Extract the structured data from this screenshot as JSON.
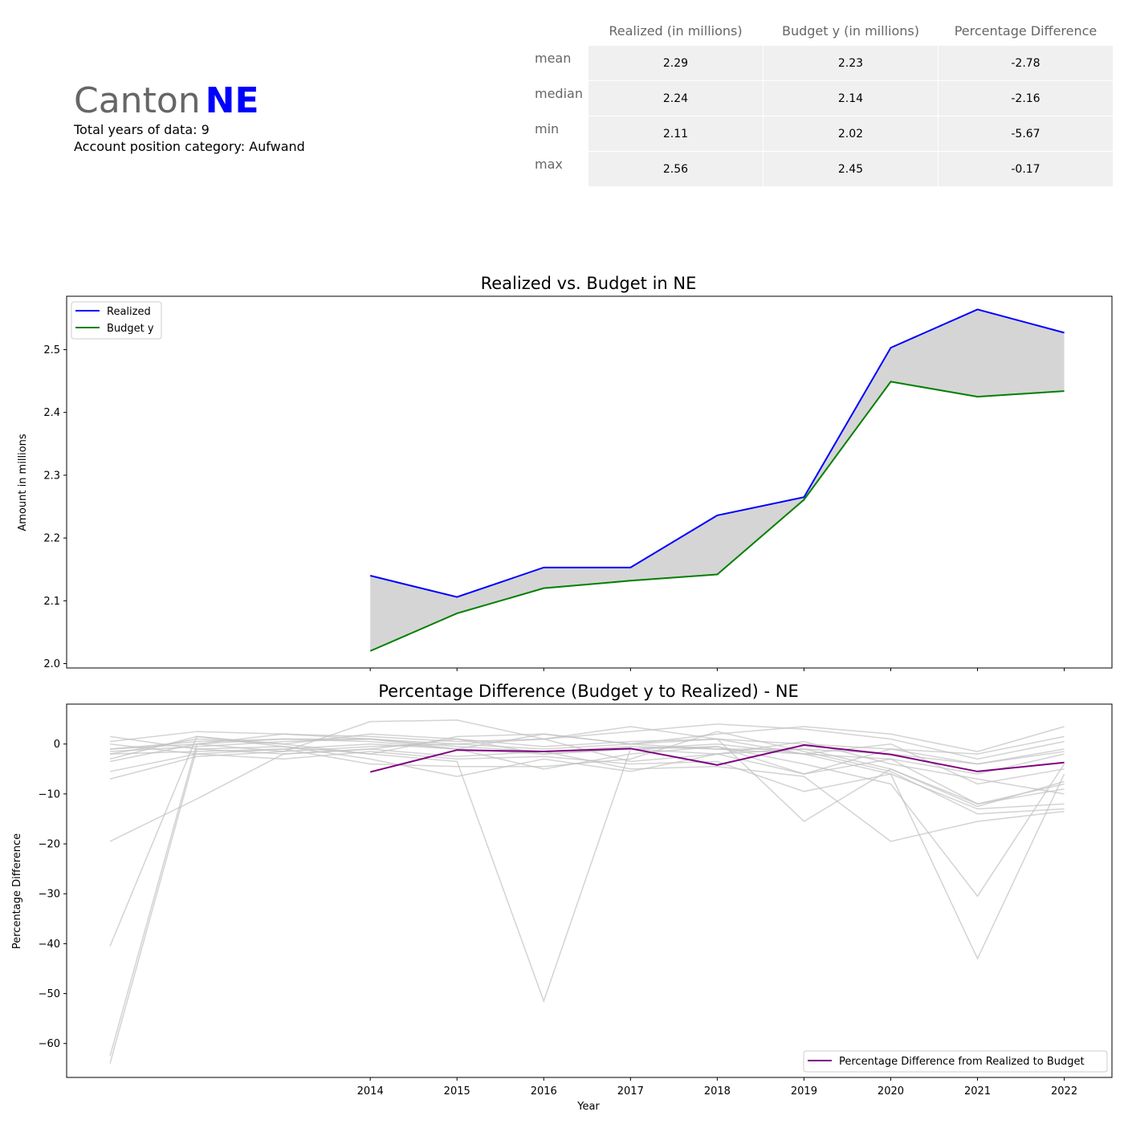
{
  "header": {
    "canton_word": "Canton",
    "canton_code": "NE",
    "years_line": "Total years of data: 9",
    "category_line": "Account position category: Aufwand"
  },
  "stats_table": {
    "columns": [
      "Realized (in millions)",
      "Budget y (in millions)",
      "Percentage Difference"
    ],
    "rows": [
      {
        "label": "mean",
        "values": [
          "2.29",
          "2.23",
          "-2.78"
        ]
      },
      {
        "label": "median",
        "values": [
          "2.24",
          "2.14",
          "-2.16"
        ]
      },
      {
        "label": "min",
        "values": [
          "2.11",
          "2.02",
          "-5.67"
        ]
      },
      {
        "label": "max",
        "values": [
          "2.56",
          "2.45",
          "-0.17"
        ]
      }
    ]
  },
  "chart_data": [
    {
      "type": "line",
      "title": "Realized vs. Budget in NE",
      "xlabel": "",
      "ylabel": "Amount in millions",
      "x": [
        2014,
        2015,
        2016,
        2017,
        2018,
        2019,
        2020,
        2021,
        2022
      ],
      "xlim": [
        2010.5,
        2022.55
      ],
      "ylim": [
        1.993,
        2.585
      ],
      "yticks": [
        2.0,
        2.1,
        2.2,
        2.3,
        2.4,
        2.5
      ],
      "legend_position": "top-left",
      "fill_between": true,
      "series": [
        {
          "name": "Realized",
          "color": "#0000ff",
          "values": [
            2.14,
            2.106,
            2.153,
            2.153,
            2.236,
            2.265,
            2.503,
            2.564,
            2.527
          ]
        },
        {
          "name": "Budget y",
          "color": "#008000",
          "values": [
            2.02,
            2.08,
            2.12,
            2.132,
            2.142,
            2.261,
            2.449,
            2.425,
            2.434
          ]
        }
      ]
    },
    {
      "type": "line",
      "title": "Percentage Difference (Budget y to Realized) - NE",
      "xlabel": "Year",
      "ylabel": "Percentage Difference",
      "x": [
        2014,
        2015,
        2016,
        2017,
        2018,
        2019,
        2020,
        2021,
        2022
      ],
      "xticks": [
        "2014",
        "2015",
        "2016",
        "2017",
        "2018",
        "2019",
        "2020",
        "2021",
        "2022"
      ],
      "xlim": [
        2010.5,
        2022.55
      ],
      "ylim": [
        -66.8,
        8.0
      ],
      "yticks": [
        0,
        -10,
        -20,
        -30,
        -40,
        -50,
        -60
      ],
      "legend_position": "bottom-right",
      "series": [
        {
          "name": "Percentage Difference from Realized to Budget",
          "color": "#800080",
          "values": [
            -5.6,
            -1.2,
            -1.5,
            -0.9,
            -4.2,
            -0.2,
            -2.1,
            -5.5,
            -3.7
          ]
        }
      ],
      "background_series_color": "#c0c0c0",
      "background_x": [
        2011,
        2012,
        2013,
        2014,
        2015,
        2016,
        2017,
        2018,
        2019,
        2020,
        2021,
        2022
      ],
      "background_series": [
        [
          1.5,
          -1.0,
          -2.0,
          -1.0,
          1.0,
          -0.5,
          0.5,
          1.0,
          0.0,
          -1.0,
          -4.0,
          -1.0
        ],
        [
          -1.0,
          0.5,
          1.0,
          1.0,
          0.0,
          -1.0,
          0.0,
          -1.0,
          -2.0,
          -3.0,
          -6.0,
          -2.0
        ],
        [
          -2.0,
          -1.5,
          -1.0,
          0.0,
          -1.0,
          -2.0,
          -1.0,
          -2.0,
          -1.0,
          -5.0,
          -12.0,
          -8.0
        ],
        [
          0.5,
          2.5,
          2.0,
          1.5,
          0.5,
          1.0,
          2.5,
          4.0,
          3.0,
          1.0,
          -3.0,
          0.5
        ],
        [
          -3.0,
          1.5,
          0.0,
          -2.0,
          1.5,
          2.0,
          0.0,
          2.0,
          3.5,
          2.0,
          -1.5,
          3.5
        ],
        [
          -1.5,
          -0.5,
          0.5,
          1.0,
          -0.5,
          -1.5,
          -0.5,
          -1.0,
          -1.0,
          -2.0,
          -4.0,
          -1.5
        ],
        [
          -5.5,
          -2.0,
          -3.0,
          -1.5,
          -3.0,
          -2.5,
          -4.0,
          -3.5,
          -9.5,
          -6.0,
          -13.0,
          -12.0
        ],
        [
          -7.0,
          -2.5,
          -1.5,
          4.5,
          4.8,
          1.0,
          3.5,
          1.0,
          -15.5,
          -5.0,
          -12.5,
          -7.5
        ],
        [
          -19.5,
          -11.0,
          -2.0,
          -1.0,
          -2.5,
          -1.5,
          -5.0,
          -4.5,
          -6.5,
          -19.5,
          -15.5,
          -13.5
        ],
        [
          -40.5,
          1.5,
          -0.5,
          -2.0,
          -3.5,
          -51.5,
          -1.0,
          0.0,
          -2.0,
          -6.0,
          -43.0,
          -6.0
        ],
        [
          -62.5,
          0.0,
          1.0,
          0.5,
          -1.0,
          -5.0,
          -2.0,
          -0.5,
          -4.0,
          -8.0,
          -30.5,
          -4.0
        ],
        [
          -64.0,
          -1.0,
          -0.5,
          -3.0,
          -6.5,
          -3.0,
          -5.5,
          -2.0,
          -6.0,
          -3.0,
          -12.0,
          -9.0
        ],
        [
          -1.0,
          0.0,
          2.0,
          1.0,
          -1.0,
          2.0,
          0.0,
          1.0,
          -2.0,
          0.0,
          -8.0,
          -5.0
        ],
        [
          0.0,
          -2.0,
          -1.0,
          -4.0,
          -4.5,
          -4.5,
          -3.0,
          2.5,
          -1.5,
          -5.5,
          -14.0,
          -13.0
        ],
        [
          -2.0,
          1.0,
          0.0,
          2.0,
          1.0,
          -2.0,
          -1.0,
          -0.5,
          -6.0,
          -1.0,
          -2.0,
          1.5
        ],
        [
          -3.5,
          0.0,
          -1.5,
          -0.5,
          0.0,
          1.0,
          -3.5,
          -2.0,
          0.5,
          -4.0,
          -7.0,
          -10.0
        ]
      ]
    }
  ]
}
